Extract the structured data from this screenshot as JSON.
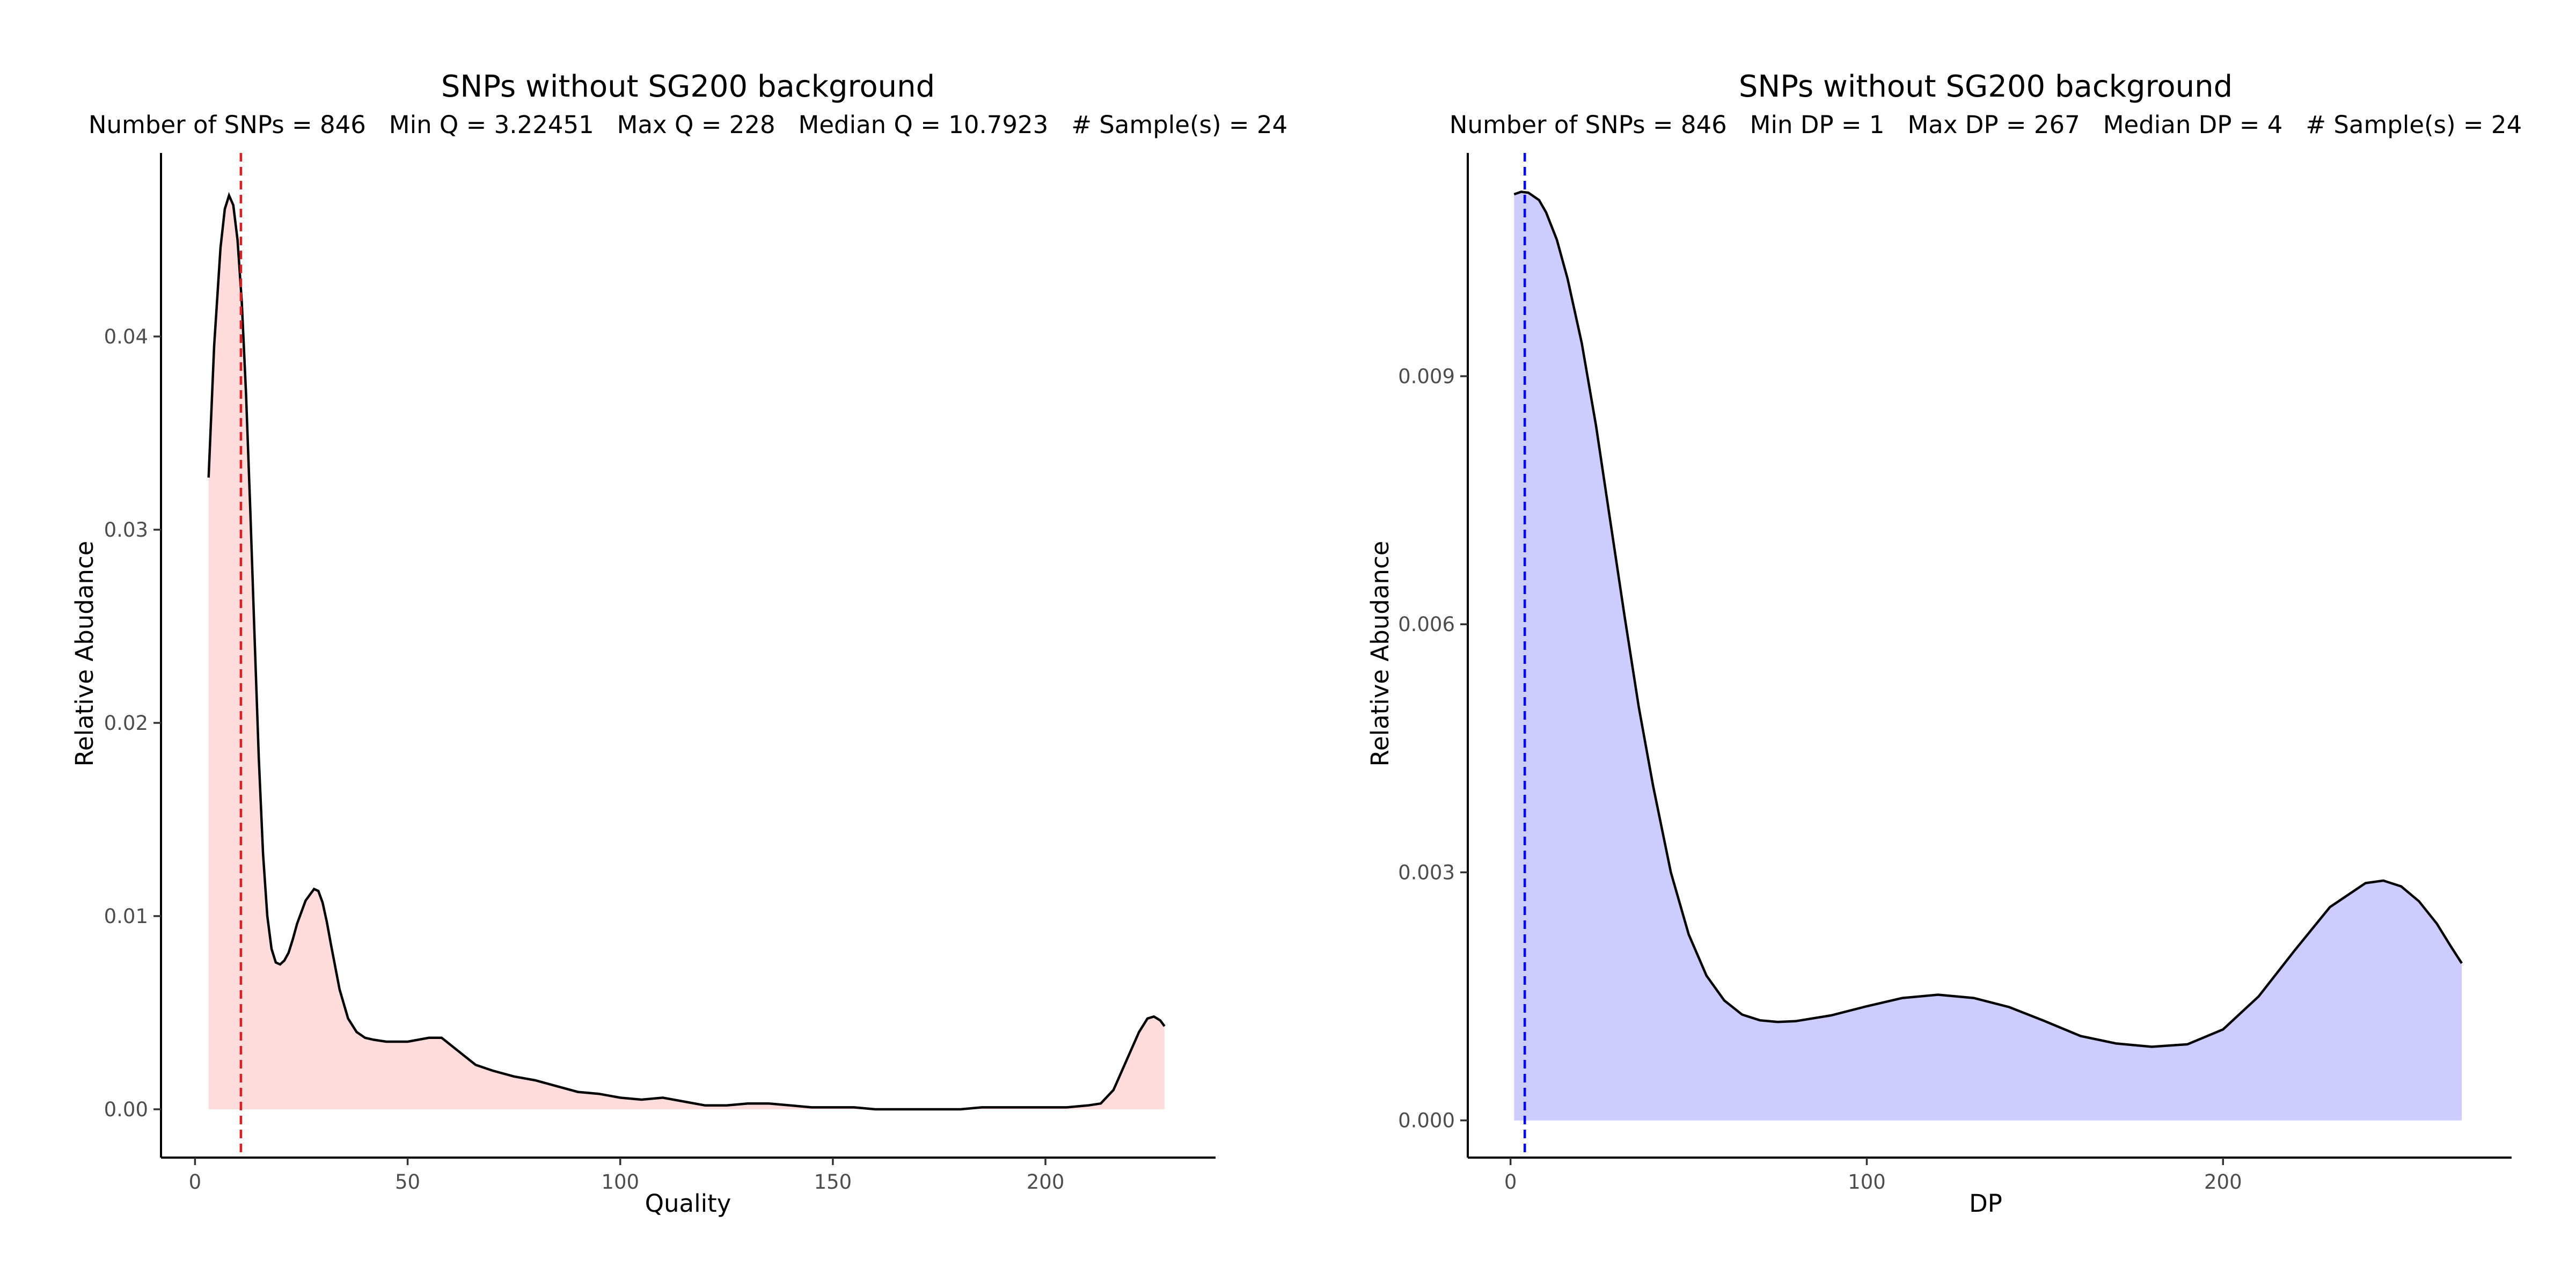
{
  "chart_data": [
    {
      "type": "area",
      "title": "SNPs without SG200 background",
      "subtitle": "Number of SNPs = 846   Min Q = 3.22451   Max Q = 228   Median Q = 10.7923   # Sample(s) = 24",
      "xlabel": "Quality",
      "ylabel": "Relative Abudance",
      "xlim": [
        -8,
        240
      ],
      "ylim": [
        -0.0025,
        0.0495
      ],
      "x_ticks": [
        0,
        50,
        100,
        150,
        200
      ],
      "x_tick_labels": [
        "0",
        "50",
        "100",
        "150",
        "200"
      ],
      "y_ticks": [
        0.0,
        0.01,
        0.02,
        0.03,
        0.04
      ],
      "y_tick_labels": [
        "0.00",
        "0.01",
        "0.02",
        "0.03",
        "0.04"
      ],
      "fill_color": "#ffdcdc",
      "median": 10.7923,
      "median_color": "#e41a1c",
      "grid": false,
      "series": [
        {
          "x": [
            3.2,
            4.5,
            6.0,
            7.0,
            8.0,
            9.0,
            10.0,
            11.0,
            12.0,
            13.0,
            14.0,
            15.0,
            16.0,
            17.0,
            18.0,
            19.0,
            20.0,
            21.0,
            22.0,
            23.0,
            24.0,
            26.0,
            28.0,
            29.0,
            30.0,
            31.0,
            32.0,
            34.0,
            36.0,
            38.0,
            40.0,
            42.0,
            45.0,
            50.0,
            55.0,
            58.0,
            62.0,
            66.0,
            70.0,
            75.0,
            80.0,
            85.0,
            90.0,
            95.0,
            100.0,
            105.0,
            110.0,
            115.0,
            120.0,
            125.0,
            130.0,
            135.0,
            140.0,
            145.0,
            150.0,
            155.0,
            160.0,
            165.0,
            170.0,
            175.0,
            180.0,
            185.0,
            190.0,
            195.0,
            200.0,
            205.0,
            210.0,
            213.0,
            216.0,
            219.0,
            222.0,
            224.0,
            225.5,
            227.0,
            228.0
          ],
          "y": [
            0.0327,
            0.0395,
            0.0446,
            0.0466,
            0.0473,
            0.0468,
            0.045,
            0.0418,
            0.037,
            0.031,
            0.0245,
            0.0182,
            0.0132,
            0.01,
            0.0083,
            0.0076,
            0.0075,
            0.0077,
            0.0081,
            0.0088,
            0.0096,
            0.0108,
            0.0114,
            0.0113,
            0.0107,
            0.0097,
            0.0085,
            0.0062,
            0.0047,
            0.004,
            0.0037,
            0.0036,
            0.0035,
            0.0035,
            0.0037,
            0.0037,
            0.003,
            0.0023,
            0.002,
            0.0017,
            0.0015,
            0.0012,
            0.0009,
            0.0008,
            0.0006,
            0.0005,
            0.0006,
            0.0004,
            0.0002,
            0.0002,
            0.0003,
            0.0003,
            0.0002,
            0.0001,
            0.0001,
            0.0001,
            0.0,
            0.0,
            0.0,
            0.0,
            0.0,
            0.0001,
            0.0001,
            0.0001,
            0.0001,
            0.0001,
            0.0002,
            0.0003,
            0.001,
            0.0025,
            0.004,
            0.0047,
            0.0048,
            0.0046,
            0.0043
          ]
        }
      ]
    },
    {
      "type": "area",
      "title": "SNPs without SG200 background",
      "subtitle": "Number of SNPs = 846   Min DP = 1   Max DP = 267   Median DP = 4   # Sample(s) = 24",
      "xlabel": "DP",
      "ylabel": "Relative Abudance",
      "xlim": [
        -12,
        281
      ],
      "ylim": [
        -0.00045,
        0.0117
      ],
      "x_ticks": [
        0,
        100,
        200
      ],
      "x_tick_labels": [
        "0",
        "100",
        "200"
      ],
      "y_ticks": [
        0.0,
        0.003,
        0.006,
        0.009
      ],
      "y_tick_labels": [
        "0.000",
        "0.003",
        "0.006",
        "0.009"
      ],
      "fill_color": "#ccccff",
      "median": 4,
      "median_color": "#0000ff",
      "grid": false,
      "series": [
        {
          "x": [
            1,
            3,
            5,
            8,
            10,
            13,
            16,
            20,
            24,
            28,
            32,
            36,
            40,
            45,
            50,
            55,
            60,
            65,
            70,
            75,
            80,
            90,
            100,
            110,
            120,
            130,
            140,
            150,
            160,
            170,
            180,
            190,
            200,
            210,
            220,
            230,
            240,
            245,
            250,
            255,
            260,
            264,
            267
          ],
          "y": [
            0.0112,
            0.01123,
            0.01122,
            0.01113,
            0.01098,
            0.01065,
            0.01018,
            0.0094,
            0.0084,
            0.00725,
            0.0061,
            0.005,
            0.00405,
            0.003,
            0.00225,
            0.00175,
            0.00145,
            0.00128,
            0.00121,
            0.00119,
            0.0012,
            0.00127,
            0.00138,
            0.00148,
            0.00152,
            0.00148,
            0.00137,
            0.0012,
            0.00102,
            0.00093,
            0.00089,
            0.00092,
            0.0011,
            0.0015,
            0.00205,
            0.00258,
            0.00287,
            0.0029,
            0.00283,
            0.00265,
            0.00238,
            0.0021,
            0.0019
          ]
        }
      ]
    }
  ]
}
